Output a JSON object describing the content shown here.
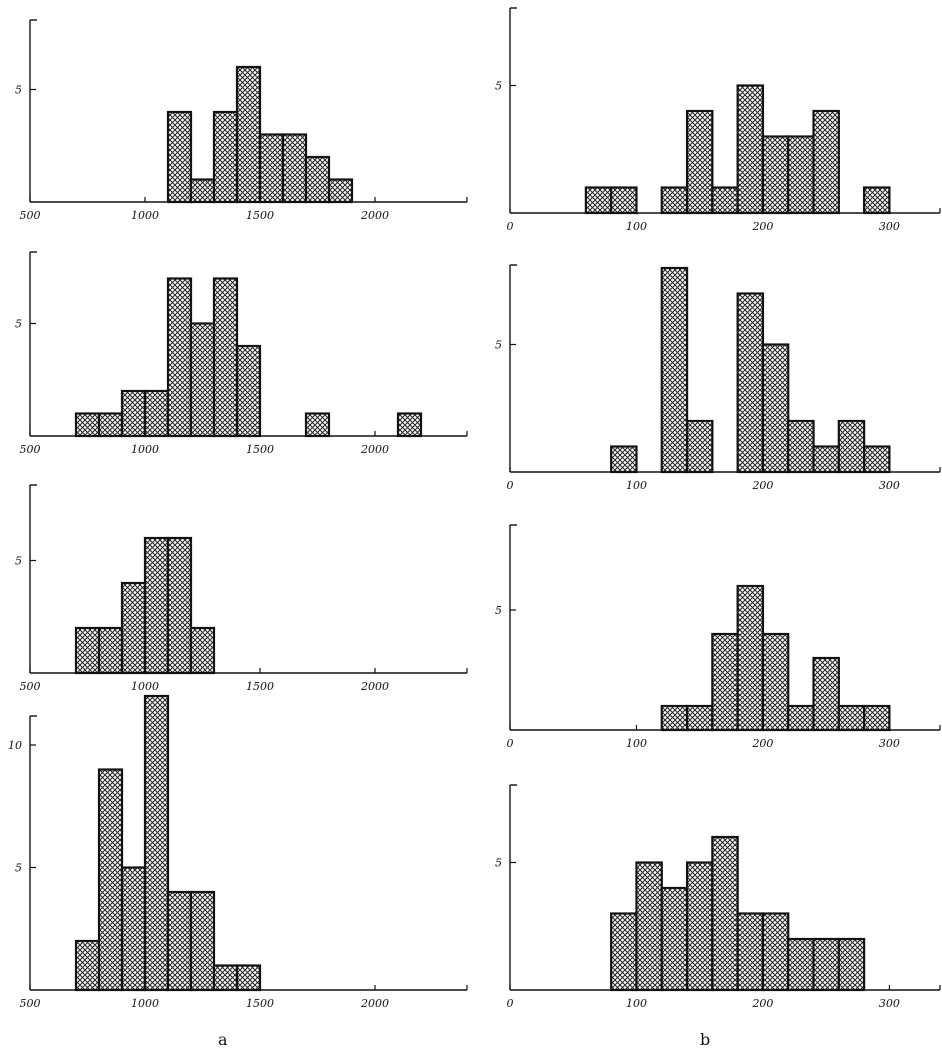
{
  "captions": [
    "a",
    "b"
  ],
  "chart_data": [
    {
      "id": "a1",
      "type": "bar",
      "title": "",
      "xlabel": "",
      "ylabel": "",
      "xlim": [
        500,
        2400
      ],
      "ylim": [
        0,
        7
      ],
      "xticks": [
        500,
        1000,
        1500,
        2000
      ],
      "xtick_labels": [
        "500",
        "1000",
        "1500",
        "2000"
      ],
      "yticks": [
        5
      ],
      "ytick_labels": [
        "5"
      ],
      "bin_width": 100,
      "bins": [
        [
          1100,
          4
        ],
        [
          1200,
          1
        ],
        [
          1300,
          4
        ],
        [
          1400,
          6
        ],
        [
          1500,
          3
        ],
        [
          1600,
          3
        ],
        [
          1700,
          2
        ],
        [
          1800,
          1
        ]
      ]
    },
    {
      "id": "a2",
      "type": "bar",
      "title": "",
      "xlabel": "",
      "ylabel": "",
      "xlim": [
        500,
        2400
      ],
      "ylim": [
        0,
        9
      ],
      "xticks": [
        500,
        1000,
        1500,
        2000
      ],
      "xtick_labels": [
        "500",
        "1000",
        "1500",
        "2000"
      ],
      "yticks": [
        5
      ],
      "ytick_labels": [
        "5"
      ],
      "bin_width": 100,
      "bins": [
        [
          700,
          1
        ],
        [
          800,
          1
        ],
        [
          900,
          2
        ],
        [
          1000,
          2
        ],
        [
          1100,
          7
        ],
        [
          1200,
          5
        ],
        [
          1300,
          7
        ],
        [
          1400,
          4
        ],
        [
          1700,
          1
        ],
        [
          2100,
          1
        ]
      ]
    },
    {
      "id": "a3",
      "type": "bar",
      "title": "",
      "xlabel": "",
      "ylabel": "",
      "xlim": [
        500,
        2400
      ],
      "ylim": [
        0,
        8
      ],
      "xticks": [
        500,
        1000,
        1500,
        2000
      ],
      "xtick_labels": [
        "500",
        "1000",
        "1500",
        "2000"
      ],
      "yticks": [
        5
      ],
      "ytick_labels": [
        "5"
      ],
      "bin_width": 100,
      "bins": [
        [
          700,
          2
        ],
        [
          800,
          2
        ],
        [
          900,
          4
        ],
        [
          1000,
          6
        ],
        [
          1100,
          6
        ],
        [
          1200,
          2
        ]
      ]
    },
    {
      "id": "a4",
      "type": "bar",
      "title": "",
      "xlabel": "",
      "ylabel": "",
      "xlim": [
        500,
        2400
      ],
      "ylim": [
        0,
        13
      ],
      "xticks": [
        500,
        1000,
        1500,
        2000
      ],
      "xtick_labels": [
        "500",
        "1000",
        "1500",
        "2000"
      ],
      "yticks": [
        5,
        10
      ],
      "ytick_labels": [
        "5",
        "10"
      ],
      "bin_width": 100,
      "bins": [
        [
          700,
          2
        ],
        [
          800,
          9
        ],
        [
          900,
          5
        ],
        [
          1000,
          12
        ],
        [
          1100,
          4
        ],
        [
          1200,
          4
        ],
        [
          1300,
          1
        ],
        [
          1400,
          1
        ]
      ]
    },
    {
      "id": "b1",
      "type": "bar",
      "title": "",
      "xlabel": "",
      "ylabel": "",
      "xlim": [
        0,
        340
      ],
      "ylim": [
        0,
        10
      ],
      "xticks": [
        0,
        100,
        200,
        300
      ],
      "xtick_labels": [
        "0",
        "100",
        "200",
        "300"
      ],
      "yticks": [
        5
      ],
      "ytick_labels": [
        "5"
      ],
      "bin_width": 20,
      "bins": [
        [
          60,
          1
        ],
        [
          80,
          1
        ],
        [
          120,
          1
        ],
        [
          140,
          4
        ],
        [
          160,
          1
        ],
        [
          180,
          5
        ],
        [
          200,
          3
        ],
        [
          220,
          3
        ],
        [
          240,
          4
        ],
        [
          280,
          1
        ]
      ]
    },
    {
      "id": "b2",
      "type": "bar",
      "title": "",
      "xlabel": "",
      "ylabel": "",
      "xlim": [
        0,
        340
      ],
      "ylim": [
        0,
        8
      ],
      "xticks": [
        0,
        100,
        200,
        300
      ],
      "xtick_labels": [
        "0",
        "100",
        "200",
        "300"
      ],
      "yticks": [
        5
      ],
      "ytick_labels": [
        "5"
      ],
      "bin_width": 20,
      "bins": [
        [
          80,
          1
        ],
        [
          120,
          8
        ],
        [
          140,
          2
        ],
        [
          180,
          7
        ],
        [
          200,
          5
        ],
        [
          220,
          2
        ],
        [
          240,
          1
        ],
        [
          260,
          2
        ],
        [
          280,
          1
        ]
      ]
    },
    {
      "id": "b3",
      "type": "bar",
      "title": "",
      "xlabel": "",
      "ylabel": "",
      "xlim": [
        0,
        340
      ],
      "ylim": [
        0,
        8
      ],
      "xticks": [
        0,
        100,
        200,
        300
      ],
      "xtick_labels": [
        "0",
        "100",
        "200",
        "300"
      ],
      "yticks": [
        5
      ],
      "ytick_labels": [
        "5"
      ],
      "bin_width": 20,
      "bins": [
        [
          120,
          1
        ],
        [
          140,
          1
        ],
        [
          160,
          4
        ],
        [
          180,
          6
        ],
        [
          200,
          4
        ],
        [
          220,
          1
        ],
        [
          240,
          3
        ],
        [
          260,
          1
        ],
        [
          280,
          1
        ]
      ]
    },
    {
      "id": "b4",
      "type": "bar",
      "title": "",
      "xlabel": "",
      "ylabel": "",
      "xlim": [
        0,
        340
      ],
      "ylim": [
        0,
        8
      ],
      "xticks": [
        0,
        100,
        200,
        300
      ],
      "xtick_labels": [
        "0",
        "100",
        "200",
        "300"
      ],
      "yticks": [
        5
      ],
      "ytick_labels": [
        "5"
      ],
      "bin_width": 20,
      "bins": [
        [
          80,
          3
        ],
        [
          100,
          5
        ],
        [
          120,
          4
        ],
        [
          140,
          5
        ],
        [
          160,
          6
        ],
        [
          180,
          3
        ],
        [
          200,
          3
        ],
        [
          220,
          2
        ],
        [
          240,
          2
        ],
        [
          260,
          2
        ]
      ]
    }
  ]
}
